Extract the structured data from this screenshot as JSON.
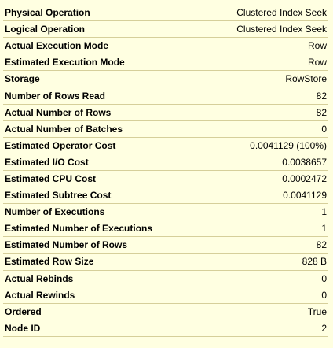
{
  "properties": [
    {
      "label": "Physical Operation",
      "value": "Clustered Index Seek"
    },
    {
      "label": "Logical Operation",
      "value": "Clustered Index Seek"
    },
    {
      "label": "Actual Execution Mode",
      "value": "Row"
    },
    {
      "label": "Estimated Execution Mode",
      "value": "Row"
    },
    {
      "label": "Storage",
      "value": "RowStore"
    },
    {
      "label": "Number of Rows Read",
      "value": "82"
    },
    {
      "label": "Actual Number of Rows",
      "value": "82"
    },
    {
      "label": "Actual Number of Batches",
      "value": "0"
    },
    {
      "label": "Estimated Operator Cost",
      "value": "0.0041129 (100%)"
    },
    {
      "label": "Estimated I/O Cost",
      "value": "0.0038657"
    },
    {
      "label": "Estimated CPU Cost",
      "value": "0.0002472"
    },
    {
      "label": "Estimated Subtree Cost",
      "value": "0.0041129"
    },
    {
      "label": "Number of Executions",
      "value": "1"
    },
    {
      "label": "Estimated Number of Executions",
      "value": "1"
    },
    {
      "label": "Estimated Number of Rows",
      "value": "82"
    },
    {
      "label": "Estimated Row Size",
      "value": "828 B"
    },
    {
      "label": "Actual Rebinds",
      "value": "0"
    },
    {
      "label": "Actual Rewinds",
      "value": "0"
    },
    {
      "label": "Ordered",
      "value": "True"
    },
    {
      "label": "Node ID",
      "value": "2"
    }
  ],
  "colors": {
    "background": "#ffffe1",
    "divider": "#d6cf9a",
    "text": "#000000"
  }
}
